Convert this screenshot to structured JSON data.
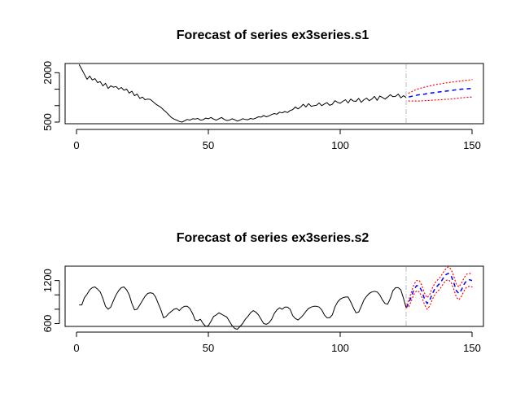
{
  "chart_data": [
    {
      "type": "line",
      "title": "Forecast of series ex3series.s1",
      "xlabel": "",
      "ylabel": "",
      "xlim": [
        0,
        150
      ],
      "ylim": [
        450,
        2280
      ],
      "xticks": [
        0,
        50,
        100,
        150
      ],
      "yticks_labeled": [
        500,
        2000
      ],
      "yticks_minor": [
        1000,
        1500
      ],
      "forecast_origin": 125,
      "colors": {
        "observed": "#000000",
        "forecast": "#0000ff",
        "interval": "#ff0000",
        "origin_line": "#bebebe"
      },
      "series": [
        {
          "role": "observed",
          "x": [
            1,
            2,
            3,
            4,
            5,
            6,
            7,
            8,
            9,
            10,
            11,
            12,
            13,
            14,
            15,
            16,
            17,
            18,
            19,
            20,
            21,
            22,
            23,
            24,
            25,
            26,
            27,
            28,
            29,
            30,
            31,
            32,
            33,
            34,
            35,
            36,
            37,
            38,
            39,
            40,
            41,
            42,
            43,
            44,
            45,
            46,
            47,
            48,
            49,
            50,
            51,
            52,
            53,
            54,
            55,
            56,
            57,
            58,
            59,
            60,
            61,
            62,
            63,
            64,
            65,
            66,
            67,
            68,
            69,
            70,
            71,
            72,
            73,
            74,
            75,
            76,
            77,
            78,
            79,
            80,
            81,
            82,
            83,
            84,
            85,
            86,
            87,
            88,
            89,
            90,
            91,
            92,
            93,
            94,
            95,
            96,
            97,
            98,
            99,
            100,
            101,
            102,
            103,
            104,
            105,
            106,
            107,
            108,
            109,
            110,
            111,
            112,
            113,
            114,
            115,
            116,
            117,
            118,
            119,
            120,
            121,
            122,
            123,
            124,
            125
          ],
          "values": [
            2250,
            2100,
            1950,
            1800,
            1900,
            1780,
            1820,
            1700,
            1730,
            1600,
            1680,
            1520,
            1600,
            1560,
            1580,
            1500,
            1550,
            1470,
            1500,
            1380,
            1440,
            1300,
            1350,
            1220,
            1260,
            1180,
            1200,
            1190,
            1120,
            1050,
            1000,
            950,
            870,
            800,
            720,
            640,
            590,
            560,
            520,
            500,
            540,
            580,
            560,
            600,
            590,
            610,
            560,
            570,
            620,
            600,
            640,
            590,
            560,
            600,
            640,
            580,
            550,
            560,
            600,
            570,
            530,
            560,
            600,
            580,
            570,
            610,
            590,
            620,
            660,
            650,
            700,
            660,
            690,
            730,
            760,
            740,
            800,
            780,
            820,
            790,
            850,
            880,
            960,
            900,
            960,
            1040,
            960,
            1060,
            980,
            1000,
            1010,
            1080,
            1000,
            1050,
            1090,
            1010,
            1040,
            1150,
            1100,
            1070,
            1130,
            1180,
            1080,
            1200,
            1140,
            1130,
            1220,
            1100,
            1180,
            1230,
            1150,
            1200,
            1280,
            1160,
            1290,
            1250,
            1200,
            1260,
            1330,
            1270,
            1280,
            1350,
            1240,
            1300,
            1250
          ]
        },
        {
          "role": "forecast",
          "x": [
            126,
            128,
            130,
            132,
            134,
            136,
            138,
            140,
            142,
            144,
            146,
            148,
            150
          ],
          "values": [
            1260,
            1300,
            1330,
            1350,
            1380,
            1400,
            1420,
            1440,
            1460,
            1480,
            1500,
            1510,
            1520
          ]
        },
        {
          "role": "upper-interval",
          "x": [
            126,
            128,
            130,
            132,
            134,
            136,
            138,
            140,
            142,
            144,
            146,
            148,
            150
          ],
          "values": [
            1380,
            1460,
            1520,
            1560,
            1600,
            1640,
            1660,
            1690,
            1710,
            1730,
            1750,
            1770,
            1790
          ]
        },
        {
          "role": "lower-interval",
          "x": [
            126,
            128,
            130,
            132,
            134,
            136,
            138,
            140,
            142,
            144,
            146,
            148,
            150
          ],
          "values": [
            1140,
            1140,
            1140,
            1150,
            1160,
            1170,
            1180,
            1190,
            1200,
            1220,
            1240,
            1250,
            1260
          ]
        }
      ]
    },
    {
      "type": "line",
      "title": "Forecast of series ex3series.s2",
      "xlabel": "",
      "ylabel": "",
      "xlim": [
        0,
        150
      ],
      "ylim": [
        560,
        1400
      ],
      "xticks": [
        0,
        50,
        100,
        150
      ],
      "yticks_labeled": [
        600,
        1200
      ],
      "yticks_minor": [
        800,
        1000
      ],
      "forecast_origin": 125,
      "colors": {
        "observed": "#000000",
        "forecast": "#0000ff",
        "interval": "#ff0000",
        "origin_line": "#bebebe"
      },
      "series": [
        {
          "role": "observed",
          "x": [
            1,
            2,
            3,
            4,
            5,
            6,
            7,
            8,
            9,
            10,
            11,
            12,
            13,
            14,
            15,
            16,
            17,
            18,
            19,
            20,
            21,
            22,
            23,
            24,
            25,
            26,
            27,
            28,
            29,
            30,
            31,
            32,
            33,
            34,
            35,
            36,
            37,
            38,
            39,
            40,
            41,
            42,
            43,
            44,
            45,
            46,
            47,
            48,
            49,
            50,
            51,
            52,
            53,
            54,
            55,
            56,
            57,
            58,
            59,
            60,
            61,
            62,
            63,
            64,
            65,
            66,
            67,
            68,
            69,
            70,
            71,
            72,
            73,
            74,
            75,
            76,
            77,
            78,
            79,
            80,
            81,
            82,
            83,
            84,
            85,
            86,
            87,
            88,
            89,
            90,
            91,
            92,
            93,
            94,
            95,
            96,
            97,
            98,
            99,
            100,
            101,
            102,
            103,
            104,
            105,
            106,
            107,
            108,
            109,
            110,
            111,
            112,
            113,
            114,
            115,
            116,
            117,
            118,
            119,
            120,
            121,
            122,
            123,
            124,
            125
          ],
          "values": [
            860,
            860,
            960,
            1010,
            1070,
            1100,
            1110,
            1080,
            1040,
            950,
            840,
            800,
            830,
            920,
            1000,
            1060,
            1100,
            1110,
            1070,
            1000,
            880,
            790,
            800,
            860,
            920,
            980,
            1020,
            1030,
            1020,
            970,
            880,
            790,
            680,
            700,
            740,
            770,
            800,
            810,
            780,
            820,
            840,
            840,
            810,
            740,
            650,
            640,
            660,
            600,
            560,
            570,
            630,
            700,
            720,
            750,
            730,
            710,
            690,
            630,
            570,
            530,
            520,
            560,
            600,
            660,
            700,
            750,
            780,
            760,
            720,
            660,
            600,
            590,
            610,
            660,
            740,
            790,
            820,
            800,
            830,
            830,
            800,
            710,
            670,
            650,
            680,
            720,
            770,
            810,
            830,
            840,
            840,
            830,
            790,
            720,
            680,
            680,
            720,
            830,
            900,
            940,
            960,
            970,
            970,
            900,
            820,
            750,
            760,
            840,
            930,
            980,
            1020,
            1040,
            1050,
            1040,
            1000,
            930,
            880,
            870,
            950,
            1060,
            1100,
            1100,
            1070,
            950,
            820
          ]
        },
        {
          "role": "forecast",
          "x": [
            125,
            126,
            127,
            128,
            129,
            130,
            131,
            132,
            133,
            134,
            135,
            136,
            137,
            138,
            139,
            140,
            141,
            142,
            143,
            144,
            145,
            146,
            147,
            148,
            149,
            150
          ],
          "values": [
            820,
            880,
            980,
            1080,
            1130,
            1120,
            1050,
            940,
            880,
            930,
            1020,
            1090,
            1130,
            1170,
            1230,
            1280,
            1300,
            1270,
            1180,
            1060,
            1020,
            1070,
            1150,
            1200,
            1210,
            1200
          ]
        },
        {
          "role": "upper-interval",
          "x": [
            125,
            126,
            127,
            128,
            129,
            130,
            131,
            132,
            133,
            134,
            135,
            136,
            137,
            138,
            139,
            140,
            141,
            142,
            143,
            144,
            145,
            146,
            147,
            148,
            149,
            150
          ],
          "values": [
            820,
            930,
            1040,
            1150,
            1200,
            1200,
            1130,
            1020,
            960,
            1010,
            1100,
            1170,
            1210,
            1250,
            1310,
            1360,
            1390,
            1360,
            1270,
            1150,
            1110,
            1160,
            1240,
            1290,
            1300,
            1290
          ]
        },
        {
          "role": "lower-interval",
          "x": [
            125,
            126,
            127,
            128,
            129,
            130,
            131,
            132,
            133,
            134,
            135,
            136,
            137,
            138,
            139,
            140,
            141,
            142,
            143,
            144,
            145,
            146,
            147,
            148,
            149,
            150
          ],
          "values": [
            820,
            830,
            920,
            1010,
            1060,
            1040,
            970,
            860,
            800,
            850,
            940,
            1010,
            1050,
            1090,
            1150,
            1200,
            1210,
            1180,
            1090,
            970,
            930,
            980,
            1060,
            1110,
            1120,
            1110
          ]
        }
      ]
    }
  ]
}
